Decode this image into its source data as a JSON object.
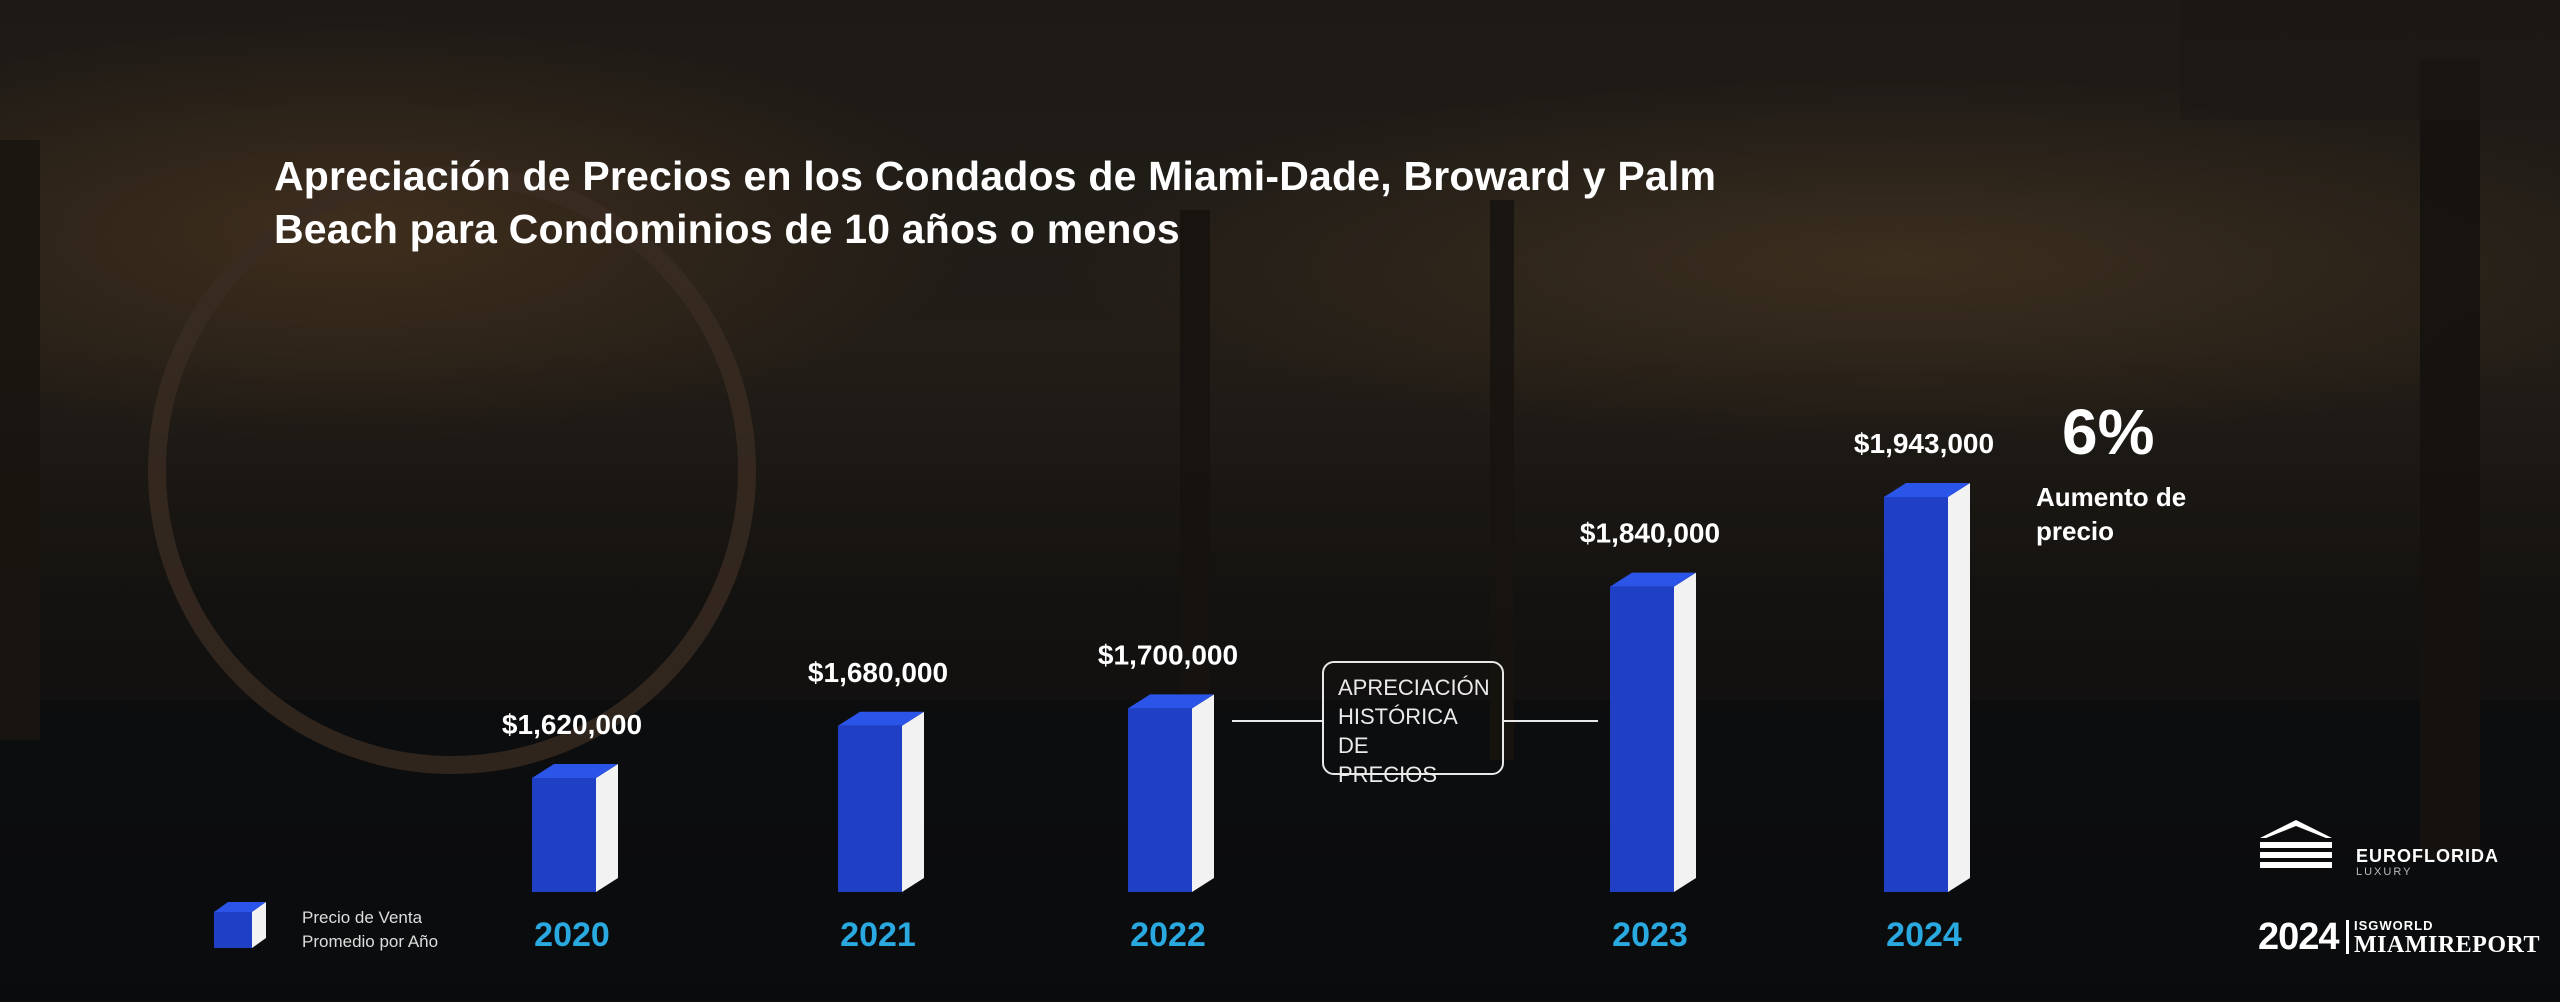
{
  "title": {
    "line1": "Apreciación de Precios en los Condados de Miami-Dade, Broward y Palm",
    "line2": "Beach para Condominios de 10 años o menos"
  },
  "chart_data": {
    "type": "bar",
    "categories": [
      "2020",
      "2021",
      "2022",
      "2023",
      "2024"
    ],
    "values": [
      1620000,
      1680000,
      1700000,
      1840000,
      1943000
    ],
    "value_labels": [
      "$1,620,000",
      "$1,680,000",
      "$1,700,000",
      "$1,840,000",
      "$1,943,000"
    ],
    "series": [
      {
        "name": "Precio de Venta Promedio por Año",
        "values": [
          1620000,
          1680000,
          1700000,
          1840000,
          1943000
        ]
      }
    ],
    "annotation": "APRECIACIÓN HISTÓRICA DE PRECIOS",
    "colors": {
      "bar_front": "#1f3fc4",
      "bar_top": "#2b54e8",
      "bar_side": "#f2f2f2",
      "year_label": "#2aa8e0"
    }
  },
  "callout": {
    "value": "6%",
    "label": "Aumento de precio"
  },
  "legend": {
    "label_line1": "Precio de Venta",
    "label_line2": "Promedio por Año"
  },
  "annotation": {
    "line1": "APRECIACIÓN",
    "line2": "HISTÓRICA DE",
    "line3": "PRECIOS"
  },
  "branding": {
    "logo1_name": "EUROFLORIDA",
    "logo1_sub": "LUXURY",
    "logo2_year": "2024",
    "logo2_org": "ISGWORLD",
    "logo2_report": "MIAMIREPORT"
  }
}
